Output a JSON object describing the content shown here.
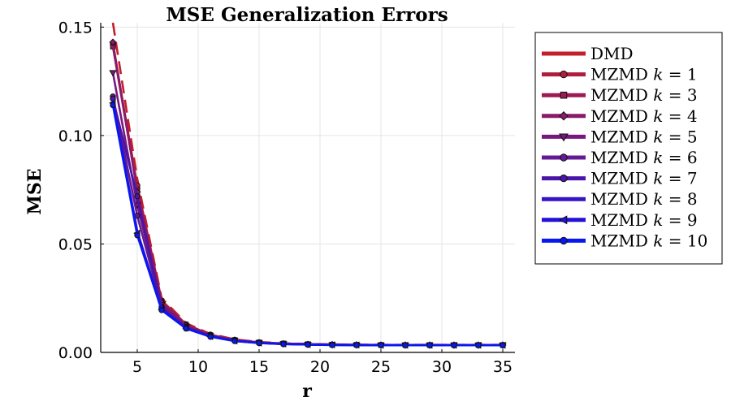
{
  "chart_data": {
    "type": "line",
    "title": "MSE Generalization Errors",
    "xlabel": "r",
    "ylabel": "MSE",
    "xlim": [
      2,
      36
    ],
    "ylim": [
      0,
      0.152
    ],
    "grid": true,
    "legend_position": "outside-right",
    "x_ticks": [
      5,
      10,
      15,
      20,
      25,
      30,
      35
    ],
    "y_ticks": [
      0.0,
      0.05,
      0.1,
      0.15
    ],
    "y_tick_labels": [
      "0.00",
      "0.05",
      "0.10",
      "0.15"
    ],
    "x": [
      3,
      5,
      7,
      9,
      11,
      13,
      15,
      17,
      19,
      21,
      23,
      25,
      27,
      29,
      31,
      33,
      35
    ],
    "series": [
      {
        "name": "DMD",
        "legend_prefix": "DMD",
        "legend_k": "",
        "color": "#c41e2a",
        "dash": true,
        "marker": "none",
        "values": [
          0.152,
          0.08,
          0.025,
          0.0135,
          0.0085,
          0.006,
          0.0048,
          0.0042,
          0.0039,
          0.0037,
          0.0036,
          0.0035,
          0.0035,
          0.0035,
          0.0035,
          0.0035,
          0.0035
        ]
      },
      {
        "name": "MZMD k = 1",
        "legend_prefix": "MZMD",
        "legend_k": "1",
        "color": "#b01e3e",
        "dash": false,
        "marker": "circle",
        "values": [
          0.142,
          0.077,
          0.024,
          0.013,
          0.0082,
          0.0058,
          0.0046,
          0.0041,
          0.0038,
          0.0036,
          0.0035,
          0.0035,
          0.0034,
          0.0034,
          0.0034,
          0.0034,
          0.0034
        ]
      },
      {
        "name": "MZMD k = 3",
        "legend_prefix": "MZMD",
        "legend_k": "3",
        "color": "#9e1a55",
        "dash": false,
        "marker": "square",
        "values": [
          0.141,
          0.075,
          0.0235,
          0.0128,
          0.008,
          0.0057,
          0.0046,
          0.0041,
          0.0038,
          0.0036,
          0.0035,
          0.0034,
          0.0034,
          0.0034,
          0.0034,
          0.0034,
          0.0034
        ]
      },
      {
        "name": "MZMD k = 4",
        "legend_prefix": "MZMD",
        "legend_k": "4",
        "color": "#8a1a6a",
        "dash": false,
        "marker": "diamond",
        "values": [
          0.143,
          0.074,
          0.023,
          0.0125,
          0.0079,
          0.0056,
          0.0045,
          0.004,
          0.0037,
          0.0036,
          0.0035,
          0.0034,
          0.0034,
          0.0034,
          0.0034,
          0.0034,
          0.0034
        ]
      },
      {
        "name": "MZMD k = 5",
        "legend_prefix": "MZMD",
        "legend_k": "5",
        "color": "#76187e",
        "dash": false,
        "marker": "triangle-down",
        "values": [
          0.129,
          0.068,
          0.022,
          0.012,
          0.0077,
          0.0055,
          0.0045,
          0.004,
          0.0037,
          0.0035,
          0.0034,
          0.0034,
          0.0034,
          0.0034,
          0.0034,
          0.0034,
          0.0034
        ]
      },
      {
        "name": "MZMD k = 6",
        "legend_prefix": "MZMD",
        "legend_k": "6",
        "color": "#631a94",
        "dash": false,
        "marker": "circle",
        "values": [
          0.118,
          0.063,
          0.021,
          0.0118,
          0.0076,
          0.0054,
          0.0044,
          0.0039,
          0.0037,
          0.0035,
          0.0034,
          0.0034,
          0.0033,
          0.0033,
          0.0033,
          0.0033,
          0.0033
        ]
      },
      {
        "name": "MZMD k = 7",
        "legend_prefix": "MZMD",
        "legend_k": "7",
        "color": "#4a15aa",
        "dash": false,
        "marker": "hexagon",
        "values": [
          0.117,
          0.072,
          0.0205,
          0.0115,
          0.0075,
          0.0054,
          0.0044,
          0.0039,
          0.0037,
          0.0035,
          0.0034,
          0.0034,
          0.0033,
          0.0033,
          0.0033,
          0.0033,
          0.0033
        ]
      },
      {
        "name": "MZMD k = 8",
        "legend_prefix": "MZMD",
        "legend_k": "8",
        "color": "#3414c4",
        "dash": false,
        "marker": "none",
        "values": [
          0.116,
          0.056,
          0.02,
          0.0113,
          0.0074,
          0.0053,
          0.0044,
          0.0039,
          0.0036,
          0.0035,
          0.0034,
          0.0033,
          0.0033,
          0.0033,
          0.0033,
          0.0033,
          0.0033
        ]
      },
      {
        "name": "MZMD k = 9",
        "legend_prefix": "MZMD",
        "legend_k": "9",
        "color": "#2410dc",
        "dash": false,
        "marker": "triangle-left",
        "values": [
          0.115,
          0.055,
          0.0198,
          0.0112,
          0.0073,
          0.0053,
          0.0043,
          0.0039,
          0.0036,
          0.0035,
          0.0034,
          0.0033,
          0.0033,
          0.0033,
          0.0033,
          0.0033,
          0.0033
        ]
      },
      {
        "name": "MZMD k = 10",
        "legend_prefix": "MZMD",
        "legend_k": "10",
        "color": "#0a18f0",
        "dash": false,
        "marker": "circle",
        "values": [
          0.114,
          0.054,
          0.0195,
          0.011,
          0.0072,
          0.0052,
          0.0043,
          0.0038,
          0.0036,
          0.0034,
          0.0034,
          0.0033,
          0.0033,
          0.0033,
          0.0033,
          0.0033,
          0.0033
        ]
      }
    ]
  }
}
